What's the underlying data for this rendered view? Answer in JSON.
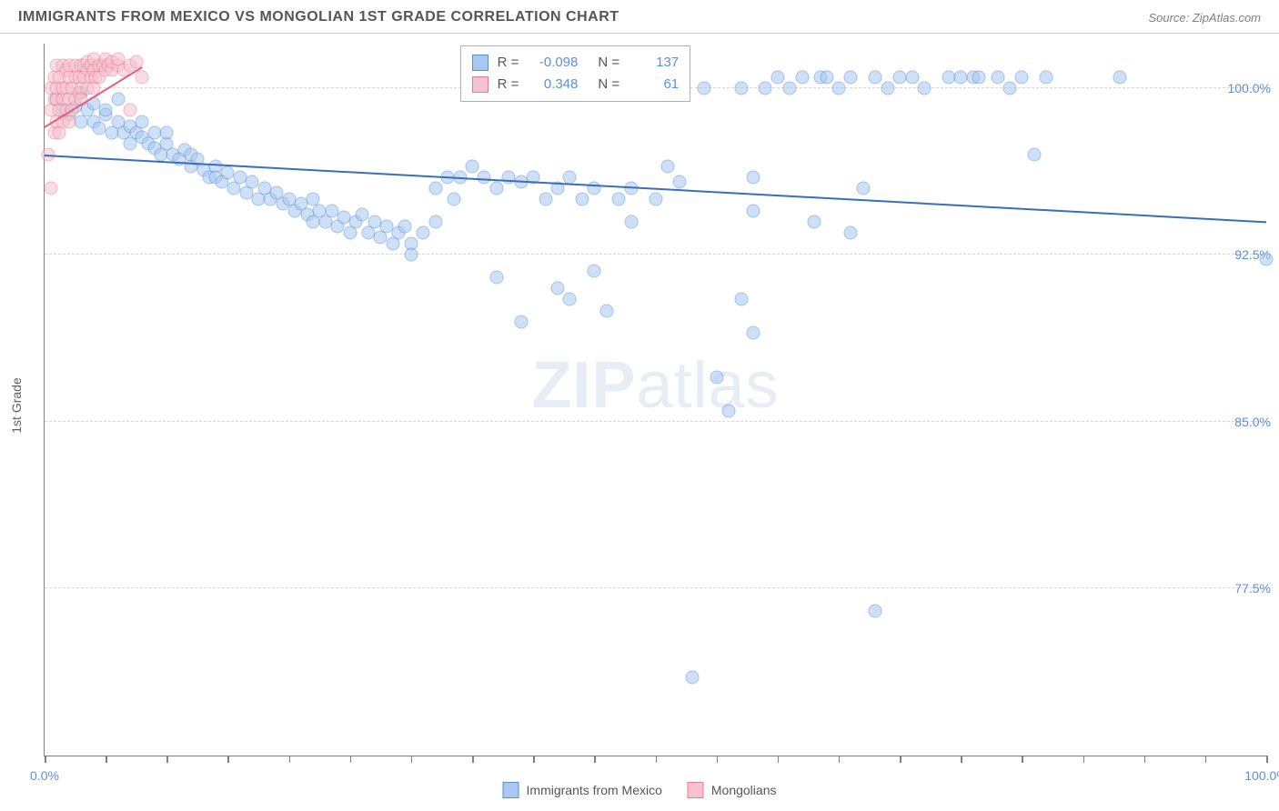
{
  "title": "IMMIGRANTS FROM MEXICO VS MONGOLIAN 1ST GRADE CORRELATION CHART",
  "source": "Source: ZipAtlas.com",
  "ylabel": "1st Grade",
  "watermark_bold": "ZIP",
  "watermark_rest": "atlas",
  "chart": {
    "type": "scatter",
    "xlim": [
      0,
      100
    ],
    "ylim": [
      70,
      102
    ],
    "background_color": "#ffffff",
    "grid_color": "#d8d8d8",
    "axis_color": "#808080",
    "marker_radius": 7.5,
    "marker_opacity": 0.55,
    "yticks": [
      {
        "v": 77.5,
        "label": "77.5%"
      },
      {
        "v": 85.0,
        "label": "85.0%"
      },
      {
        "v": 92.5,
        "label": "92.5%"
      },
      {
        "v": 100.0,
        "label": "100.0%"
      }
    ],
    "xtick_positions": [
      0,
      5,
      10,
      15,
      20,
      25,
      30,
      35,
      40,
      45,
      50,
      55,
      60,
      65,
      70,
      75,
      80,
      85,
      90,
      95,
      100
    ],
    "xtick_labels": [
      {
        "v": 0,
        "label": "0.0%"
      },
      {
        "v": 100,
        "label": "100.0%"
      }
    ],
    "series": [
      {
        "name": "Immigrants from Mexico",
        "color_fill": "#a7c8ef",
        "color_stroke": "#5b8fd6",
        "class": "blue",
        "R": "-0.098",
        "N": "137",
        "trend": {
          "x1": 0,
          "y1": 97.0,
          "x2": 100,
          "y2": 94.0,
          "color": "#3a6fb5"
        },
        "points": [
          [
            1,
            99.5
          ],
          [
            1.5,
            99
          ],
          [
            2,
            98.8
          ],
          [
            2.5,
            99.2
          ],
          [
            3,
            98.5
          ],
          [
            3,
            99.8
          ],
          [
            3.5,
            99
          ],
          [
            4,
            98.5
          ],
          [
            4,
            99.3
          ],
          [
            4.5,
            98.2
          ],
          [
            5,
            98.8
          ],
          [
            5,
            99
          ],
          [
            5.5,
            98
          ],
          [
            6,
            98.5
          ],
          [
            6,
            99.5
          ],
          [
            6.5,
            98
          ],
          [
            7,
            98.3
          ],
          [
            7,
            97.5
          ],
          [
            7.5,
            98
          ],
          [
            8,
            97.8
          ],
          [
            8,
            98.5
          ],
          [
            8.5,
            97.5
          ],
          [
            9,
            97.3
          ],
          [
            9,
            98
          ],
          [
            9.5,
            97
          ],
          [
            10,
            97.5
          ],
          [
            10,
            98
          ],
          [
            10.5,
            97
          ],
          [
            11,
            96.8
          ],
          [
            11.5,
            97.2
          ],
          [
            12,
            96.5
          ],
          [
            12,
            97
          ],
          [
            12.5,
            96.8
          ],
          [
            13,
            96.3
          ],
          [
            13.5,
            96
          ],
          [
            14,
            96.5
          ],
          [
            14,
            96
          ],
          [
            14.5,
            95.8
          ],
          [
            15,
            96.2
          ],
          [
            15.5,
            95.5
          ],
          [
            16,
            96
          ],
          [
            16.5,
            95.3
          ],
          [
            17,
            95.8
          ],
          [
            17.5,
            95
          ],
          [
            18,
            95.5
          ],
          [
            18.5,
            95
          ],
          [
            19,
            95.3
          ],
          [
            19.5,
            94.8
          ],
          [
            20,
            95
          ],
          [
            20.5,
            94.5
          ],
          [
            21,
            94.8
          ],
          [
            21.5,
            94.3
          ],
          [
            22,
            95
          ],
          [
            22,
            94
          ],
          [
            22.5,
            94.5
          ],
          [
            23,
            94
          ],
          [
            23.5,
            94.5
          ],
          [
            24,
            93.8
          ],
          [
            24.5,
            94.2
          ],
          [
            25,
            93.5
          ],
          [
            25.5,
            94
          ],
          [
            26,
            94.3
          ],
          [
            26.5,
            93.5
          ],
          [
            27,
            94
          ],
          [
            27.5,
            93.3
          ],
          [
            28,
            93.8
          ],
          [
            28.5,
            93
          ],
          [
            29,
            93.5
          ],
          [
            29.5,
            93.8
          ],
          [
            30,
            93
          ],
          [
            30,
            92.5
          ],
          [
            31,
            93.5
          ],
          [
            32,
            94
          ],
          [
            32,
            95.5
          ],
          [
            33,
            96
          ],
          [
            33.5,
            95
          ],
          [
            34,
            96
          ],
          [
            35,
            96.5
          ],
          [
            36,
            96
          ],
          [
            37,
            95.5
          ],
          [
            37,
            91.5
          ],
          [
            38,
            96
          ],
          [
            39,
            95.8
          ],
          [
            39,
            89.5
          ],
          [
            40,
            96
          ],
          [
            41,
            95
          ],
          [
            42,
            91
          ],
          [
            42,
            95.5
          ],
          [
            43,
            96
          ],
          [
            43,
            90.5
          ],
          [
            44,
            95
          ],
          [
            45,
            95.5
          ],
          [
            45,
            91.8
          ],
          [
            46,
            90
          ],
          [
            47,
            95
          ],
          [
            48,
            95.5
          ],
          [
            48,
            94
          ],
          [
            50,
            95
          ],
          [
            51,
            96.5
          ],
          [
            52,
            95.8
          ],
          [
            53,
            73.5
          ],
          [
            54,
            100
          ],
          [
            55,
            87
          ],
          [
            56,
            85.5
          ],
          [
            57,
            100
          ],
          [
            57,
            90.5
          ],
          [
            58,
            96
          ],
          [
            58,
            94.5
          ],
          [
            58,
            89
          ],
          [
            59,
            100
          ],
          [
            60,
            100.5
          ],
          [
            61,
            100
          ],
          [
            62,
            100.5
          ],
          [
            63,
            94
          ],
          [
            63.5,
            100.5
          ],
          [
            64,
            100.5
          ],
          [
            65,
            100
          ],
          [
            66,
            100.5
          ],
          [
            66,
            93.5
          ],
          [
            67,
            95.5
          ],
          [
            68,
            100.5
          ],
          [
            68,
            76.5
          ],
          [
            69,
            100
          ],
          [
            70,
            100.5
          ],
          [
            71,
            100.5
          ],
          [
            72,
            100
          ],
          [
            74,
            100.5
          ],
          [
            75,
            100.5
          ],
          [
            76,
            100.5
          ],
          [
            76.5,
            100.5
          ],
          [
            78,
            100.5
          ],
          [
            79,
            100
          ],
          [
            80,
            100.5
          ],
          [
            81,
            97
          ],
          [
            82,
            100.5
          ],
          [
            88,
            100.5
          ],
          [
            100,
            92.3
          ]
        ]
      },
      {
        "name": "Mongolians",
        "color_fill": "#f7c2cd",
        "color_stroke": "#e97b95",
        "class": "pink",
        "R": "0.348",
        "N": "61",
        "trend": {
          "x1": 0,
          "y1": 98.3,
          "x2": 8,
          "y2": 101,
          "color": "#e06080"
        },
        "points": [
          [
            0.3,
            97
          ],
          [
            0.5,
            99
          ],
          [
            0.5,
            100
          ],
          [
            0.5,
            95.5
          ],
          [
            0.8,
            98
          ],
          [
            0.8,
            99.5
          ],
          [
            0.8,
            100.5
          ],
          [
            1,
            98.5
          ],
          [
            1,
            99.5
          ],
          [
            1,
            100
          ],
          [
            1,
            101
          ],
          [
            1.2,
            98
          ],
          [
            1.2,
            99
          ],
          [
            1.2,
            100.5
          ],
          [
            1.5,
            99.5
          ],
          [
            1.5,
            100
          ],
          [
            1.5,
            101
          ],
          [
            1.5,
            98.5
          ],
          [
            1.8,
            99
          ],
          [
            1.8,
            100
          ],
          [
            1.8,
            100.8
          ],
          [
            2,
            99.5
          ],
          [
            2,
            100.5
          ],
          [
            2,
            101
          ],
          [
            2,
            98.5
          ],
          [
            2.2,
            99
          ],
          [
            2.2,
            100
          ],
          [
            2.5,
            99.5
          ],
          [
            2.5,
            100.5
          ],
          [
            2.5,
            101
          ],
          [
            2.8,
            99.8
          ],
          [
            2.8,
            100.5
          ],
          [
            3,
            100
          ],
          [
            3,
            101
          ],
          [
            3,
            99.5
          ],
          [
            3.2,
            100.5
          ],
          [
            3.2,
            101
          ],
          [
            3.5,
            100
          ],
          [
            3.5,
            100.8
          ],
          [
            3.5,
            101.2
          ],
          [
            3.8,
            100.5
          ],
          [
            3.8,
            101
          ],
          [
            4,
            100
          ],
          [
            4,
            100.8
          ],
          [
            4,
            101.3
          ],
          [
            4.2,
            100.5
          ],
          [
            4.5,
            101
          ],
          [
            4.5,
            100.5
          ],
          [
            4.8,
            101
          ],
          [
            5,
            100.8
          ],
          [
            5,
            101.3
          ],
          [
            5.2,
            101
          ],
          [
            5.5,
            100.8
          ],
          [
            5.5,
            101.2
          ],
          [
            6,
            101
          ],
          [
            6,
            101.3
          ],
          [
            6.5,
            100.8
          ],
          [
            7,
            101
          ],
          [
            7,
            99
          ],
          [
            7.5,
            101.2
          ],
          [
            8,
            100.5
          ]
        ]
      }
    ]
  },
  "legend": {
    "stats": [
      {
        "swatch": "blue",
        "r_label": "R =",
        "r_val": "-0.098",
        "n_label": "N =",
        "n_val": "137"
      },
      {
        "swatch": "pink",
        "r_label": "R =",
        "r_val": "0.348",
        "n_label": "N =",
        "n_val": "61"
      }
    ],
    "bottom": [
      {
        "swatch": "blue",
        "label": "Immigrants from Mexico"
      },
      {
        "swatch": "pink",
        "label": "Mongolians"
      }
    ]
  }
}
